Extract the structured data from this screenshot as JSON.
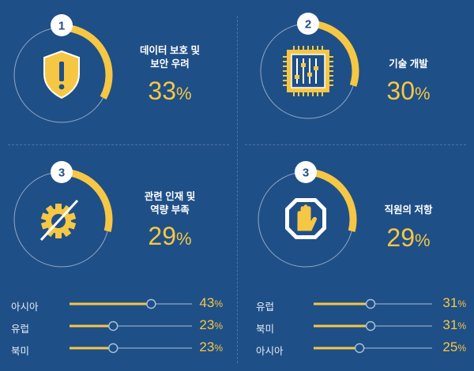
{
  "colors": {
    "background": "#1f4f87",
    "accent": "#f6c744",
    "ring": "#8fa9c8",
    "track": "#a9bfd8",
    "badge": "#ffffff",
    "badge_text": "#1f4f87"
  },
  "quadrants": [
    {
      "badge": "1",
      "label": "데이터 보호 및\n보안 우려",
      "value": "33",
      "unit": "%",
      "fraction": 0.33,
      "icon": "shield-warning-icon"
    },
    {
      "badge": "2",
      "label": "기술 개발",
      "value": "30",
      "unit": "%",
      "fraction": 0.3,
      "icon": "chip-sliders-icon"
    },
    {
      "badge": "3",
      "label": "관련 인재 및\n역량 부족",
      "value": "29",
      "unit": "%",
      "fraction": 0.29,
      "icon": "gear-crossed-icon",
      "rows": [
        {
          "label": "아시아",
          "value": "43",
          "unit": "%",
          "fraction": 0.43
        },
        {
          "label": "유럽",
          "value": "23",
          "unit": "%",
          "fraction": 0.23
        },
        {
          "label": "북미",
          "value": "23",
          "unit": "%",
          "fraction": 0.23
        }
      ]
    },
    {
      "badge": "3",
      "label": "직원의 저항",
      "value": "29",
      "unit": "%",
      "fraction": 0.29,
      "icon": "stop-hand-icon",
      "rows": [
        {
          "label": "유럽",
          "value": "31",
          "unit": "%",
          "fraction": 0.31
        },
        {
          "label": "북미",
          "value": "31",
          "unit": "%",
          "fraction": 0.31
        },
        {
          "label": "아시아",
          "value": "25",
          "unit": "%",
          "fraction": 0.25
        }
      ]
    }
  ]
}
